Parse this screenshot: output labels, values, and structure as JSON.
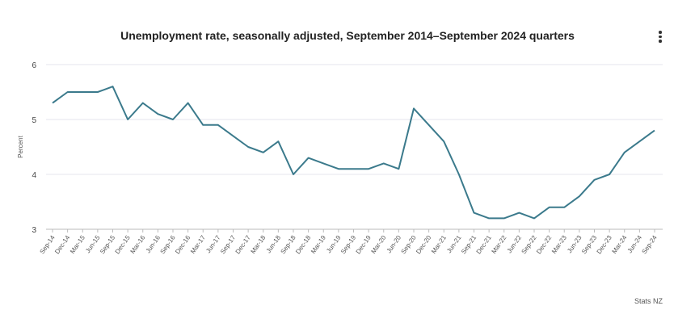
{
  "title": "Unemployment rate, seasonally adjusted, September 2014–September 2024 quarters",
  "credit": "Stats NZ",
  "menu_icon": "more-vertical-icon",
  "chart_data": {
    "type": "line",
    "title": "Unemployment rate, seasonally adjusted, September 2014–September 2024 quarters",
    "xlabel": "",
    "ylabel": "Percent",
    "ylim": [
      3,
      6
    ],
    "yticks": [
      3,
      4,
      5,
      6
    ],
    "grid": true,
    "line_color": "#3b7a8c",
    "categories": [
      "Sep-14",
      "Dec-14",
      "Mar-15",
      "Jun-15",
      "Sep-15",
      "Dec-15",
      "Mar-16",
      "Jun-16",
      "Sep-16",
      "Dec-16",
      "Mar-17",
      "Jun-17",
      "Sep-17",
      "Dec-17",
      "Mar-18",
      "Jun-18",
      "Sep-18",
      "Dec-18",
      "Mar-19",
      "Jun-19",
      "Sep-19",
      "Dec-19",
      "Mar-20",
      "Jun-20",
      "Sep-20",
      "Dec-20",
      "Mar-21",
      "Jun-21",
      "Sep-21",
      "Dec-21",
      "Mar-22",
      "Jun-22",
      "Sep-22",
      "Dec-22",
      "Mar-23",
      "Jun-23",
      "Sep-23",
      "Dec-23",
      "Mar-24",
      "Jun-24",
      "Sep-24"
    ],
    "series": [
      {
        "name": "Unemployment rate",
        "values": [
          5.3,
          5.5,
          5.5,
          5.5,
          5.6,
          5.0,
          5.3,
          5.1,
          5.0,
          5.3,
          4.9,
          4.9,
          4.7,
          4.5,
          4.4,
          4.6,
          4.0,
          4.3,
          4.2,
          4.1,
          4.1,
          4.1,
          4.2,
          4.1,
          5.2,
          4.9,
          4.6,
          4.0,
          3.3,
          3.2,
          3.2,
          3.3,
          3.2,
          3.4,
          3.4,
          3.6,
          3.9,
          4.0,
          4.4,
          4.6,
          4.8
        ]
      }
    ]
  }
}
